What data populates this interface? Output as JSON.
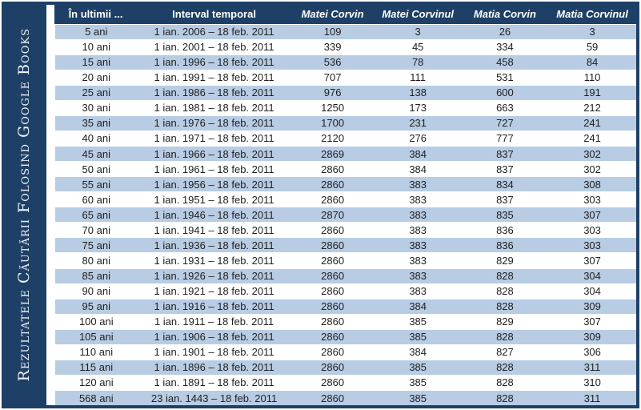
{
  "sidebar": {
    "title": "Rezultatele Căutării Folosind Google Books"
  },
  "chart_data": {
    "type": "table",
    "title": "Rezultatele căutării folosind Google Books",
    "columns": [
      "În ultimii ...",
      "Interval temporal",
      "Matei Corvin",
      "Matei Corvinul",
      "Matia Corvin",
      "Matia Corvinul"
    ],
    "rows": [
      [
        "5 ani",
        "1 ian. 2006 – 18 feb. 2011",
        "109",
        "3",
        "26",
        "3"
      ],
      [
        "10 ani",
        "1 ian. 2001 – 18 feb. 2011",
        "339",
        "45",
        "334",
        "59"
      ],
      [
        "15 ani",
        "1 ian. 1996 – 18 feb. 2011",
        "536",
        "78",
        "458",
        "84"
      ],
      [
        "20 ani",
        "1 ian. 1991 – 18 feb. 2011",
        "707",
        "111",
        "531",
        "110"
      ],
      [
        "25 ani",
        "1 ian. 1986 – 18 feb. 2011",
        "976",
        "138",
        "600",
        "191"
      ],
      [
        "30 ani",
        "1 ian. 1981 – 18 feb. 2011",
        "1250",
        "173",
        "663",
        "212"
      ],
      [
        "35 ani",
        "1 ian. 1976 – 18 feb. 2011",
        "1700",
        "231",
        "727",
        "241"
      ],
      [
        "40 ani",
        "1 ian. 1971 – 18 feb. 2011",
        "2120",
        "276",
        "777",
        "241"
      ],
      [
        "45 ani",
        "1 ian. 1966 – 18 feb. 2011",
        "2869",
        "384",
        "837",
        "302"
      ],
      [
        "50 ani",
        "1 ian. 1961 – 18 feb. 2011",
        "2860",
        "384",
        "837",
        "302"
      ],
      [
        "55 ani",
        "1 ian. 1956 – 18 feb. 2011",
        "2860",
        "383",
        "834",
        "308"
      ],
      [
        "60 ani",
        "1 ian. 1951 – 18 feb. 2011",
        "2860",
        "383",
        "837",
        "303"
      ],
      [
        "65 ani",
        "1 ian. 1946 – 18 feb. 2011",
        "2870",
        "383",
        "835",
        "307"
      ],
      [
        "70 ani",
        "1 ian. 1941 – 18 feb. 2011",
        "2860",
        "383",
        "836",
        "303"
      ],
      [
        "75 ani",
        "1 ian. 1936 – 18 feb. 2011",
        "2860",
        "383",
        "836",
        "303"
      ],
      [
        "80 ani",
        "1 ian. 1931 – 18 feb. 2011",
        "2860",
        "383",
        "829",
        "307"
      ],
      [
        "85 ani",
        "1 ian. 1926 – 18 feb. 2011",
        "2860",
        "383",
        "828",
        "304"
      ],
      [
        "90 ani",
        "1 ian. 1921 – 18 feb. 2011",
        "2860",
        "383",
        "828",
        "304"
      ],
      [
        "95 ani",
        "1 ian. 1916 – 18 feb. 2011",
        "2860",
        "384",
        "828",
        "309"
      ],
      [
        "100 ani",
        "1 ian. 1911 – 18 feb. 2011",
        "2860",
        "385",
        "829",
        "307"
      ],
      [
        "105 ani",
        "1 ian. 1906 – 18 feb. 2011",
        "2860",
        "385",
        "828",
        "309"
      ],
      [
        "110 ani",
        "1 ian. 1901 – 18 feb. 2011",
        "2860",
        "384",
        "827",
        "306"
      ],
      [
        "115 ani",
        "1 ian. 1896 – 18 feb. 2011",
        "2860",
        "385",
        "828",
        "311"
      ],
      [
        "120 ani",
        "1 ian. 1891 – 18 feb. 2011",
        "2860",
        "385",
        "828",
        "310"
      ],
      [
        "568 ani",
        "23 ian. 1443 – 18 feb. 2011",
        "2860",
        "385",
        "828",
        "311"
      ]
    ]
  },
  "colors": {
    "navy": "#1E4066",
    "band": "#B8CCE4",
    "row_white": "#FFFFFF",
    "header_text": "#FFFFFF",
    "body_text": "#1F1F1F"
  }
}
